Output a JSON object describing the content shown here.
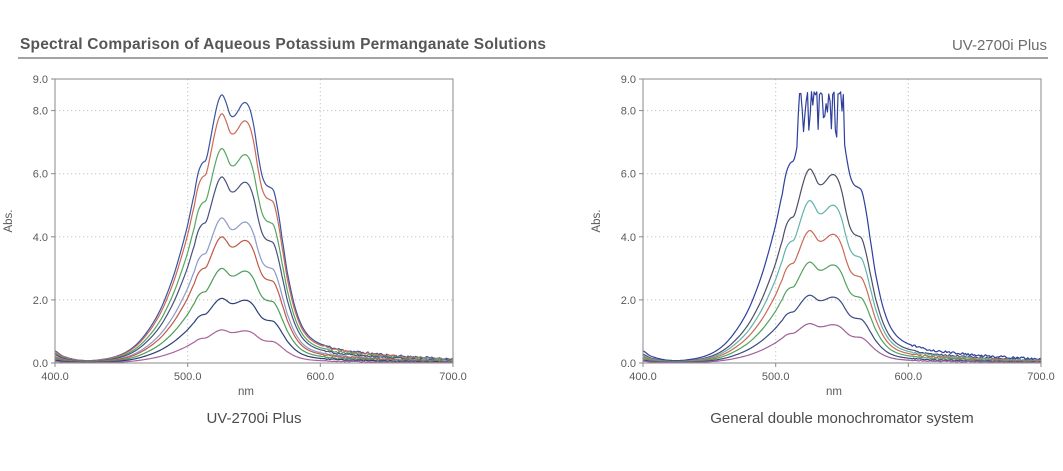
{
  "header": {
    "title": "Spectral Comparison of Aqueous Potassium Permanganate Solutions",
    "model": "UV-2700i Plus"
  },
  "chart_data": [
    {
      "id": "uv-2700i-plus",
      "type": "line",
      "caption": "UV-2700i Plus",
      "xlabel": "nm",
      "ylabel": "Abs.",
      "xlim": [
        400,
        700
      ],
      "ylim": [
        0,
        9
      ],
      "x_ticks": [
        {
          "v": 400,
          "label": "400.0"
        },
        {
          "v": 500,
          "label": "500.0"
        },
        {
          "v": 600,
          "label": "600.0"
        },
        {
          "v": 700,
          "label": "700.0"
        }
      ],
      "y_ticks": [
        {
          "v": 9,
          "label": "9.0"
        },
        {
          "v": 8,
          "label": "8.0"
        },
        {
          "v": 6,
          "label": "6.0"
        },
        {
          "v": 4,
          "label": "4.0"
        },
        {
          "v": 2,
          "label": "2.0"
        },
        {
          "v": 0,
          "label": "0.0"
        }
      ],
      "x_grid": [
        500,
        600
      ],
      "y_grid": [
        2,
        4,
        6,
        8
      ],
      "grid": "dotted",
      "legend": "none",
      "seed": 11,
      "x": [
        400,
        405,
        410,
        415,
        420,
        425,
        430,
        435,
        440,
        445,
        450,
        455,
        460,
        465,
        470,
        475,
        480,
        485,
        490,
        495,
        500,
        505,
        508,
        511,
        514,
        517,
        520,
        523,
        526,
        529,
        532,
        535,
        538,
        541,
        544,
        547,
        550,
        553,
        556,
        559,
        562,
        565,
        568,
        571,
        575,
        580,
        585,
        590,
        595,
        600,
        610,
        620,
        630,
        640,
        650,
        660,
        670,
        680,
        690,
        700
      ],
      "shape": [
        0.045,
        0.028,
        0.019,
        0.013,
        0.01,
        0.009,
        0.01,
        0.013,
        0.017,
        0.023,
        0.032,
        0.045,
        0.063,
        0.088,
        0.12,
        0.158,
        0.205,
        0.265,
        0.335,
        0.42,
        0.515,
        0.63,
        0.71,
        0.745,
        0.76,
        0.83,
        0.91,
        0.975,
        1.0,
        0.97,
        0.925,
        0.92,
        0.94,
        0.965,
        0.97,
        0.945,
        0.88,
        0.78,
        0.7,
        0.665,
        0.655,
        0.64,
        0.57,
        0.47,
        0.34,
        0.225,
        0.15,
        0.108,
        0.085,
        0.071,
        0.055,
        0.046,
        0.04,
        0.035,
        0.03,
        0.026,
        0.023,
        0.02,
        0.017,
        0.015
      ],
      "shape_note": "normalized KMnO4 absorbance; peaks at 526 nm and 545 nm, shoulders near 508 nm and 562 nm",
      "series": [
        {
          "id": "curve-1",
          "color": "#3a54a0",
          "peak_abs": 8.5
        },
        {
          "id": "curve-2",
          "color": "#cb6a57",
          "peak_abs": 7.9
        },
        {
          "id": "curve-3",
          "color": "#57a562",
          "peak_abs": 6.8
        },
        {
          "id": "curve-4",
          "color": "#47527f",
          "peak_abs": 5.9
        },
        {
          "id": "curve-5",
          "color": "#8c9ac6",
          "peak_abs": 4.6
        },
        {
          "id": "curve-6",
          "color": "#c15848",
          "peak_abs": 4.0
        },
        {
          "id": "curve-7",
          "color": "#4d9d59",
          "peak_abs": 3.0
        },
        {
          "id": "curve-8",
          "color": "#2c3e78",
          "peak_abs": 2.05
        },
        {
          "id": "curve-9",
          "color": "#a8639c",
          "peak_abs": 1.05
        }
      ]
    },
    {
      "id": "general-double-monochromator",
      "type": "line",
      "caption": "General double monochromator system",
      "xlabel": "nm",
      "ylabel": "Abs.",
      "xlim": [
        400,
        700
      ],
      "ylim": [
        0,
        9
      ],
      "x_ticks": [
        {
          "v": 400,
          "label": "400.0"
        },
        {
          "v": 500,
          "label": "500.0"
        },
        {
          "v": 600,
          "label": "600.0"
        },
        {
          "v": 700,
          "label": "700.0"
        }
      ],
      "y_ticks": [
        {
          "v": 9,
          "label": "9.0"
        },
        {
          "v": 8,
          "label": "8.0"
        },
        {
          "v": 6,
          "label": "6.0"
        },
        {
          "v": 4,
          "label": "4.0"
        },
        {
          "v": 2,
          "label": "2.0"
        },
        {
          "v": 0,
          "label": "0.0"
        }
      ],
      "x_grid": [
        500,
        600
      ],
      "y_grid": [
        2,
        4,
        6,
        8
      ],
      "grid": "dotted",
      "legend": "none",
      "seed": 5,
      "x": [
        400,
        405,
        410,
        415,
        420,
        425,
        430,
        435,
        440,
        445,
        450,
        455,
        460,
        465,
        470,
        475,
        480,
        485,
        490,
        495,
        500,
        505,
        508,
        511,
        514,
        517,
        520,
        523,
        526,
        529,
        532,
        535,
        538,
        541,
        544,
        547,
        550,
        553,
        556,
        559,
        562,
        565,
        568,
        571,
        575,
        580,
        585,
        590,
        595,
        600,
        610,
        620,
        630,
        640,
        650,
        660,
        670,
        680,
        690,
        700
      ],
      "shape": [
        0.045,
        0.028,
        0.019,
        0.013,
        0.01,
        0.009,
        0.01,
        0.013,
        0.017,
        0.023,
        0.032,
        0.045,
        0.063,
        0.088,
        0.12,
        0.158,
        0.205,
        0.265,
        0.335,
        0.42,
        0.515,
        0.63,
        0.71,
        0.745,
        0.76,
        0.83,
        0.91,
        0.975,
        1.0,
        0.97,
        0.925,
        0.92,
        0.94,
        0.965,
        0.97,
        0.945,
        0.88,
        0.78,
        0.7,
        0.665,
        0.655,
        0.64,
        0.57,
        0.47,
        0.34,
        0.225,
        0.15,
        0.108,
        0.085,
        0.071,
        0.055,
        0.046,
        0.04,
        0.035,
        0.03,
        0.026,
        0.023,
        0.02,
        0.017,
        0.015
      ],
      "shape_note": "same KMnO4 band shape; top trace saturates with stray-light noise between ~516 and ~552 nm",
      "series": [
        {
          "id": "curve-1",
          "color": "#2f3f9b",
          "peak_abs": 8.5,
          "saturated": true,
          "sat_above": 7.0,
          "sat_ceiling": 8.6,
          "sat_floor": 7.15
        },
        {
          "id": "curve-2",
          "color": "#4c5066",
          "peak_abs": 6.15
        },
        {
          "id": "curve-3",
          "color": "#62b2ad",
          "peak_abs": 5.15
        },
        {
          "id": "curve-4",
          "color": "#c96a55",
          "peak_abs": 4.2
        },
        {
          "id": "curve-5",
          "color": "#55a25d",
          "peak_abs": 3.2
        },
        {
          "id": "curve-6",
          "color": "#3a4a85",
          "peak_abs": 2.15
        },
        {
          "id": "curve-7",
          "color": "#a05f96",
          "peak_abs": 1.25
        }
      ]
    }
  ]
}
